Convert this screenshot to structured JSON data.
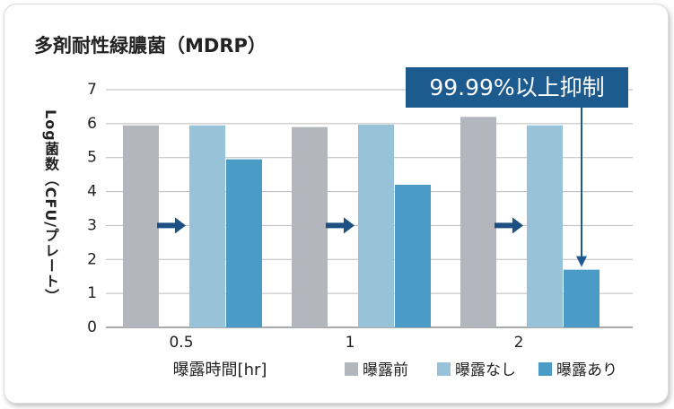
{
  "chart_data": {
    "type": "bar",
    "title": "多剤耐性緑膿菌（MDRP）",
    "y_label": "Log菌数（CFU/プレート）",
    "x_label": "曝露時間[hr]",
    "categories": [
      "0.5",
      "1",
      "2"
    ],
    "series": [
      {
        "name": "曝露前",
        "color": "#b4b6be",
        "values": [
          5.95,
          5.9,
          6.2
        ]
      },
      {
        "name": "曝露なし",
        "color": "#97c2d7",
        "values": [
          5.95,
          5.97,
          5.95
        ]
      },
      {
        "name": "曝露あり",
        "color": "#4a9bc5",
        "values": [
          4.95,
          4.2,
          1.7
        ]
      }
    ],
    "annotation": "99.99%以上抑制",
    "ylim": [
      0,
      7
    ],
    "yticks": [
      0,
      1,
      2,
      3,
      4,
      5,
      6,
      7
    ],
    "grid": true
  }
}
